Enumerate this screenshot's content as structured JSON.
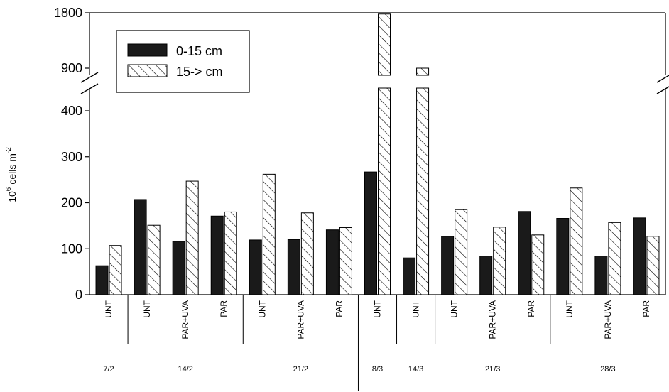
{
  "chart_data": {
    "type": "bar",
    "xlabel": "",
    "ylabel": "cells m",
    "ylabel_base": "10",
    "ylabel_exp": "6",
    "ylabel_exp2": "-2",
    "y_axis_break": true,
    "ylim_lower": [
      0,
      450
    ],
    "ylim_upper": [
      900,
      1800
    ],
    "yticks": [
      0,
      100,
      200,
      300,
      400,
      900,
      1800
    ],
    "ytick_labels": [
      "0",
      "100",
      "200",
      "300",
      "400",
      "900",
      "1800"
    ],
    "grid": false,
    "legend_position": "top-left",
    "colors": {
      "series1": "#1a1a1a",
      "series2": "#ffffff",
      "axis": "#000000"
    },
    "categories": [
      "UNT",
      "UNT",
      "PAR+UVA",
      "PAR",
      "UNT",
      "PAR+UVA",
      "PAR",
      "UNT",
      "UNT",
      "UNT",
      "PAR+UVA",
      "PAR",
      "UNT",
      "PAR+UVA",
      "PAR"
    ],
    "series": [
      {
        "name": "0-15 cm",
        "pattern": "solid",
        "values": [
          63,
          207,
          116,
          171,
          119,
          120,
          141,
          267,
          80,
          127,
          84,
          181,
          166,
          84,
          167
        ]
      },
      {
        "name": "15-> cm",
        "pattern": "hatched",
        "values": [
          107,
          151,
          247,
          180,
          262,
          178,
          146,
          1780,
          900,
          185,
          147,
          130,
          232,
          157,
          127
        ]
      }
    ],
    "groups": [
      {
        "label": "7/2",
        "start": 0,
        "end": 0
      },
      {
        "label": "14/2",
        "start": 1,
        "end": 3
      },
      {
        "label": "21/2",
        "start": 4,
        "end": 6
      },
      {
        "label": "8/3",
        "start": 7,
        "end": 7
      },
      {
        "label": "14/3",
        "start": 8,
        "end": 8
      },
      {
        "label": "21/3",
        "start": 9,
        "end": 11
      },
      {
        "label": "28/3",
        "start": 12,
        "end": 14
      }
    ],
    "long_separator_after": 6
  }
}
